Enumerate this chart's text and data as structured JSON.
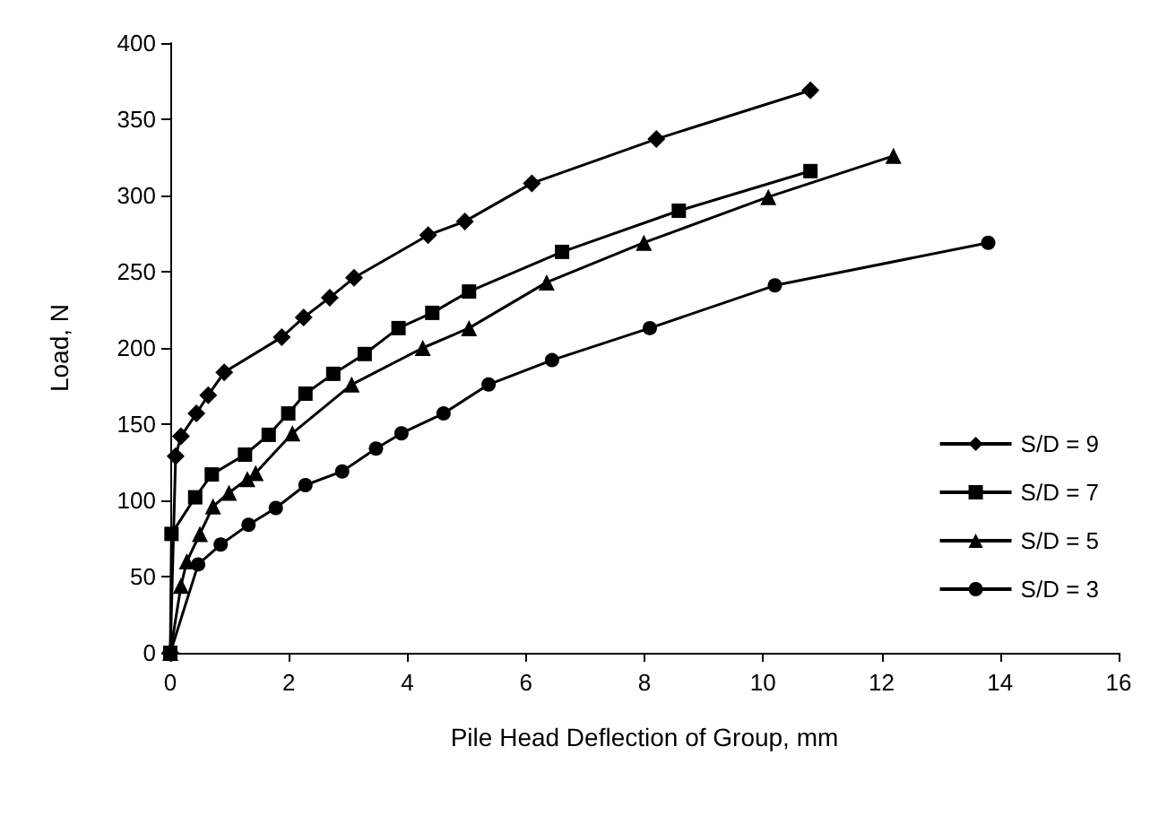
{
  "chart_data": {
    "type": "line",
    "xlabel": "Pile Head Deflection of Group, mm",
    "ylabel": "Load, N",
    "xlim": [
      0,
      16
    ],
    "xticks": [
      0,
      2,
      4,
      6,
      8,
      10,
      12,
      14,
      16
    ],
    "ylim": [
      0,
      400
    ],
    "yticks": [
      0,
      50,
      100,
      150,
      200,
      250,
      300,
      350,
      400
    ],
    "grid": false,
    "legend": "right",
    "line_style": "solid",
    "series": [
      {
        "name": "S/D = 9",
        "color": "#000000",
        "marker": "diamond",
        "x": [
          0,
          0.09,
          0.18,
          0.44,
          0.64,
          0.91,
          1.88,
          2.25,
          2.69,
          3.1,
          4.35,
          4.97,
          6.1,
          8.2,
          10.8
        ],
        "values": [
          0,
          129,
          142,
          157,
          169,
          184,
          207,
          220,
          233,
          246,
          274,
          283,
          308,
          337,
          369
        ]
      },
      {
        "name": "S/D = 7",
        "color": "#000000",
        "marker": "square",
        "x": [
          0,
          0.02,
          0.42,
          0.7,
          1.26,
          1.66,
          1.99,
          2.28,
          2.75,
          3.28,
          3.85,
          4.42,
          5.04,
          6.61,
          8.58,
          10.8
        ],
        "values": [
          0,
          78,
          102,
          117,
          130,
          143,
          157,
          170,
          183,
          196,
          213,
          223,
          237,
          263,
          290,
          316
        ]
      },
      {
        "name": "S/D = 5",
        "color": "#000000",
        "marker": "triangle",
        "x": [
          0,
          0.18,
          0.28,
          0.5,
          0.72,
          0.99,
          1.3,
          1.44,
          2.06,
          3.06,
          4.26,
          5.04,
          6.35,
          7.99,
          10.09,
          12.2
        ],
        "values": [
          0,
          44,
          60,
          78,
          96,
          105,
          114,
          118,
          144,
          176,
          200,
          213,
          243,
          269,
          299,
          326
        ]
      },
      {
        "name": "S/D = 3",
        "color": "#000000",
        "marker": "circle",
        "x": [
          0,
          0.47,
          0.85,
          1.32,
          1.78,
          2.28,
          2.9,
          3.47,
          3.9,
          4.61,
          5.37,
          6.44,
          8.09,
          10.2,
          13.8
        ],
        "values": [
          0,
          58,
          71,
          84,
          95,
          110,
          119,
          134,
          144,
          157,
          176,
          192,
          213,
          241,
          269
        ]
      }
    ]
  }
}
